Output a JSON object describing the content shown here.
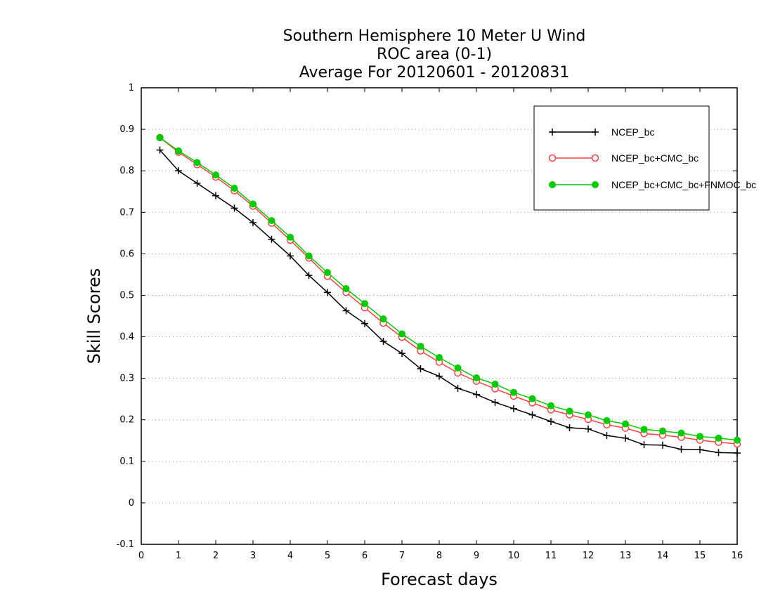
{
  "chart_data": {
    "type": "line",
    "title": [
      "Southern Hemisphere 10 Meter U Wind",
      "ROC area (0-1)",
      "Average For 20120601 - 20120831"
    ],
    "xlabel": "Forecast days",
    "ylabel": "Skill Scores",
    "xlim": [
      0,
      16
    ],
    "ylim": [
      -0.1,
      1
    ],
    "xticks": [
      0,
      1,
      2,
      3,
      4,
      5,
      6,
      7,
      8,
      9,
      10,
      11,
      12,
      13,
      14,
      15,
      16
    ],
    "yticks": [
      -0.1,
      0,
      0.1,
      0.2,
      0.3,
      0.4,
      0.5,
      0.6,
      0.7,
      0.8,
      0.9,
      1
    ],
    "ytick_labels": [
      "-0.1",
      "0",
      "0.1",
      "0.2",
      "0.3",
      "0.4",
      "0.5",
      "0.6",
      "0.7",
      "0.8",
      "0.9",
      "1"
    ],
    "grid": "horizontal dotted",
    "legend_position": "top-right",
    "x": [
      0.5,
      1,
      1.5,
      2,
      2.5,
      3,
      3.5,
      4,
      4.5,
      5,
      5.5,
      6,
      6.5,
      7,
      7.5,
      8,
      8.5,
      9,
      9.5,
      10,
      10.5,
      11,
      11.5,
      12,
      12.5,
      13,
      13.5,
      14,
      14.5,
      15,
      15.5,
      16
    ],
    "series": [
      {
        "name": "NCEP_bc",
        "color": "#000000",
        "marker": "plus",
        "values": [
          0.85,
          0.8,
          0.77,
          0.74,
          0.71,
          0.675,
          0.635,
          0.595,
          0.548,
          0.507,
          0.463,
          0.432,
          0.389,
          0.36,
          0.323,
          0.305,
          0.276,
          0.261,
          0.242,
          0.227,
          0.212,
          0.196,
          0.181,
          0.178,
          0.162,
          0.156,
          0.14,
          0.139,
          0.129,
          0.128,
          0.121,
          0.12
        ]
      },
      {
        "name": "NCEP_bc+CMC_bc",
        "color": "#ff4040",
        "marker": "open-circle",
        "values": [
          0.88,
          0.845,
          0.815,
          0.785,
          0.752,
          0.715,
          0.674,
          0.633,
          0.59,
          0.546,
          0.507,
          0.47,
          0.433,
          0.399,
          0.366,
          0.339,
          0.313,
          0.293,
          0.275,
          0.257,
          0.241,
          0.224,
          0.212,
          0.201,
          0.188,
          0.18,
          0.167,
          0.163,
          0.158,
          0.151,
          0.146,
          0.142
        ]
      },
      {
        "name": "NCEP_bc+CMC_bc+FNMOC_bc",
        "color": "#00cc00",
        "marker": "filled-circle",
        "values": [
          0.88,
          0.848,
          0.82,
          0.79,
          0.758,
          0.72,
          0.68,
          0.64,
          0.595,
          0.555,
          0.516,
          0.48,
          0.443,
          0.407,
          0.377,
          0.35,
          0.325,
          0.301,
          0.286,
          0.266,
          0.251,
          0.234,
          0.221,
          0.212,
          0.198,
          0.19,
          0.177,
          0.173,
          0.168,
          0.16,
          0.156,
          0.151
        ]
      }
    ]
  }
}
